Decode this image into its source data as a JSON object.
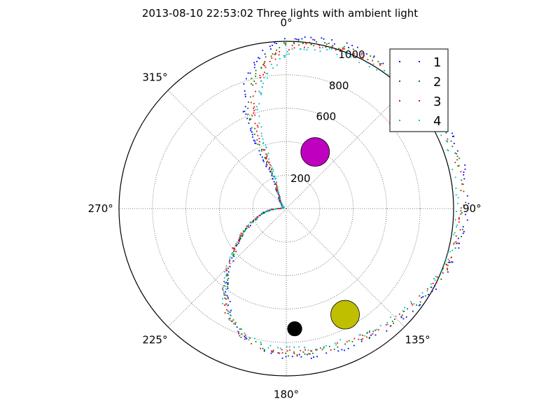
{
  "chart_data": {
    "type": "scatter",
    "subtype": "polar",
    "title": "2013-08-10 22:53:02 Three lights with ambient light",
    "theta_zero": "top",
    "theta_direction": "clockwise",
    "rlim": [
      0,
      1000
    ],
    "grid": true,
    "radial_ticks": [
      {
        "value": 200,
        "label": "200"
      },
      {
        "value": 400,
        "label": "400"
      },
      {
        "value": 600,
        "label": "600"
      },
      {
        "value": 800,
        "label": "800"
      },
      {
        "value": 1000,
        "label": "1000"
      }
    ],
    "angle_ticks": [
      {
        "value": 0,
        "label": "0°"
      },
      {
        "value": 45,
        "label": "45°"
      },
      {
        "value": 90,
        "label": "90°"
      },
      {
        "value": 135,
        "label": "135°"
      },
      {
        "value": 180,
        "label": "180°"
      },
      {
        "value": 225,
        "label": "225°"
      },
      {
        "value": 270,
        "label": "270°"
      },
      {
        "value": 315,
        "label": "315°"
      }
    ],
    "legend": {
      "position": "top-right"
    },
    "series": [
      {
        "name": "1",
        "color": "#0000ff",
        "r_offset": 25,
        "angle_shift": -3
      },
      {
        "name": "2",
        "color": "#008000",
        "r_offset": 5,
        "angle_shift": -1
      },
      {
        "name": "3",
        "color": "#ff0000",
        "r_offset": -5,
        "angle_shift": 1
      },
      {
        "name": "4",
        "color": "#00bfbf",
        "r_offset": -25,
        "angle_shift": 3
      }
    ],
    "trace_path": [
      {
        "theta": 8,
        "r": 1000
      },
      {
        "theta": 20,
        "r": 1010
      },
      {
        "theta": 35,
        "r": 1030
      },
      {
        "theta": 50,
        "r": 1050
      },
      {
        "theta": 65,
        "r": 1060
      },
      {
        "theta": 80,
        "r": 1060
      },
      {
        "theta": 95,
        "r": 1050
      },
      {
        "theta": 110,
        "r": 1020
      },
      {
        "theta": 125,
        "r": 960
      },
      {
        "theta": 140,
        "r": 920
      },
      {
        "theta": 155,
        "r": 880
      },
      {
        "theta": 170,
        "r": 870
      },
      {
        "theta": 185,
        "r": 860
      },
      {
        "theta": 200,
        "r": 800
      },
      {
        "theta": 210,
        "r": 700
      },
      {
        "theta": 220,
        "r": 560
      },
      {
        "theta": 230,
        "r": 420
      },
      {
        "theta": 240,
        "r": 300
      },
      {
        "theta": 250,
        "r": 200
      },
      {
        "theta": 262,
        "r": 120
      },
      {
        "theta": 272,
        "r": 30
      },
      {
        "theta": 290,
        "r": 15
      },
      {
        "theta": 315,
        "r": 40
      },
      {
        "theta": 330,
        "r": 80
      },
      {
        "theta": 338,
        "r": 180
      },
      {
        "theta": 338,
        "r": 300
      },
      {
        "theta": 338,
        "r": 450
      },
      {
        "theta": 340,
        "r": 620
      },
      {
        "theta": 345,
        "r": 760
      },
      {
        "theta": 352,
        "r": 890
      },
      {
        "theta": 0,
        "r": 970
      },
      {
        "theta": 8,
        "r": 1000
      }
    ],
    "light_markers": [
      {
        "color": "#bf00bf",
        "theta": 27,
        "r": 380,
        "size": 1
      },
      {
        "color": "#bfbf00",
        "theta": 151,
        "r": 725,
        "size": 1
      },
      {
        "color": "#000000",
        "theta": 176,
        "r": 720,
        "size": 0.5
      }
    ]
  }
}
